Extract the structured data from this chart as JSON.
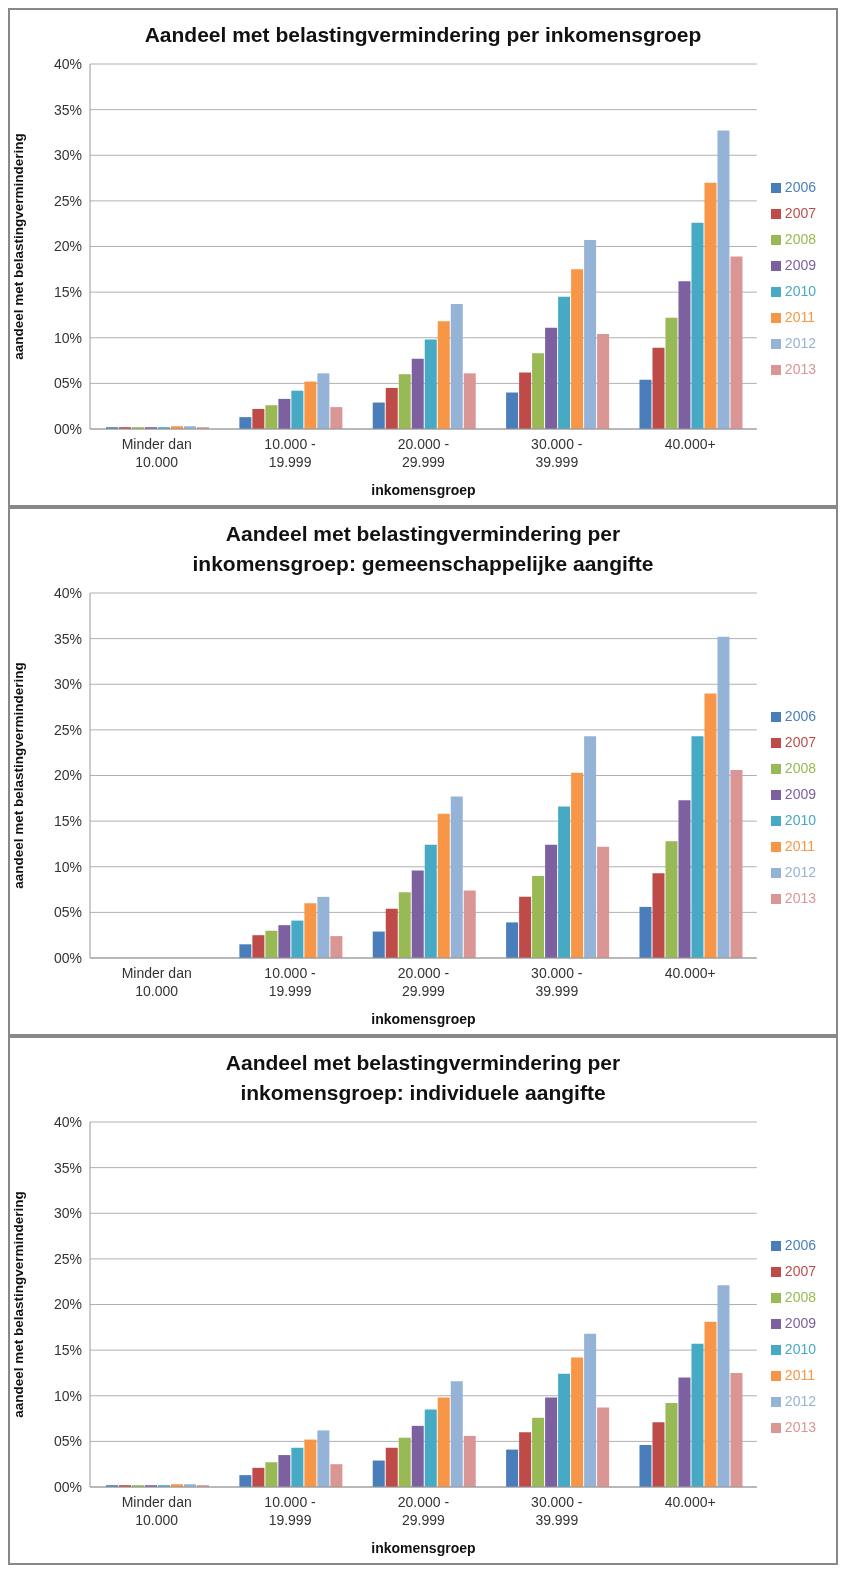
{
  "chart_data": [
    {
      "type": "bar",
      "title": "Aandeel met belastingvermindering per inkomensgroep",
      "xlabel": "inkomensgroep",
      "ylabel": "aandeel met belastingvermindering",
      "categories": [
        "Minder dan 10.000",
        "10.000 - 19.999",
        "20.000 - 29.999",
        "30.000 - 39.999",
        "40.000+"
      ],
      "series": [
        {
          "name": "2006",
          "color": "#4a7ebb",
          "values": [
            0.2,
            1.3,
            2.9,
            4.0,
            5.4
          ]
        },
        {
          "name": "2007",
          "color": "#be4b48",
          "values": [
            0.2,
            2.2,
            4.5,
            6.2,
            8.9
          ]
        },
        {
          "name": "2008",
          "color": "#98b954",
          "values": [
            0.2,
            2.6,
            6.0,
            8.3,
            12.2
          ]
        },
        {
          "name": "2009",
          "color": "#7d60a0",
          "values": [
            0.2,
            3.3,
            7.7,
            11.1,
            16.2
          ]
        },
        {
          "name": "2010",
          "color": "#46aac5",
          "values": [
            0.2,
            4.2,
            9.8,
            14.5,
            22.6
          ]
        },
        {
          "name": "2011",
          "color": "#f79646",
          "values": [
            0.3,
            5.2,
            11.8,
            17.5,
            27.0
          ]
        },
        {
          "name": "2012",
          "color": "#95b3d7",
          "values": [
            0.3,
            6.1,
            13.7,
            20.7,
            32.7
          ]
        },
        {
          "name": "2013",
          "color": "#d99694",
          "values": [
            0.2,
            2.4,
            6.1,
            10.4,
            18.9
          ]
        }
      ],
      "ylim": [
        0,
        40
      ],
      "yticks": [
        {
          "value": 0,
          "label": "00%"
        },
        {
          "value": 5,
          "label": "05%"
        },
        {
          "value": 10,
          "label": "10%"
        },
        {
          "value": 15,
          "label": "15%"
        },
        {
          "value": 20,
          "label": "20%"
        },
        {
          "value": 25,
          "label": "25%"
        },
        {
          "value": 30,
          "label": "30%"
        },
        {
          "value": 35,
          "label": "35%"
        },
        {
          "value": 40,
          "label": "40%"
        }
      ],
      "grid": "y",
      "legend": "right"
    },
    {
      "type": "bar",
      "title": "Aandeel met belastingvermindering per inkomensgroep: gemeenschappelijke aangifte",
      "xlabel": "inkomensgroep",
      "ylabel": "aandeel met belastingvermindering",
      "categories": [
        "Minder dan 10.000",
        "10.000 - 19.999",
        "20.000 - 29.999",
        "30.000 - 39.999",
        "40.000+"
      ],
      "series": [
        {
          "name": "2006",
          "color": "#4a7ebb",
          "values": [
            0,
            1.5,
            2.9,
            3.9,
            5.6
          ]
        },
        {
          "name": "2007",
          "color": "#be4b48",
          "values": [
            0,
            2.5,
            5.4,
            6.7,
            9.3
          ]
        },
        {
          "name": "2008",
          "color": "#98b954",
          "values": [
            0,
            3.0,
            7.2,
            9.0,
            12.8
          ]
        },
        {
          "name": "2009",
          "color": "#7d60a0",
          "values": [
            0,
            3.6,
            9.6,
            12.4,
            17.3
          ]
        },
        {
          "name": "2010",
          "color": "#46aac5",
          "values": [
            0,
            4.1,
            12.4,
            16.6,
            24.3
          ]
        },
        {
          "name": "2011",
          "color": "#f79646",
          "values": [
            0,
            6.0,
            15.8,
            20.3,
            29.0
          ]
        },
        {
          "name": "2012",
          "color": "#95b3d7",
          "values": [
            0,
            6.7,
            17.7,
            24.3,
            35.2
          ]
        },
        {
          "name": "2013",
          "color": "#d99694",
          "values": [
            0,
            2.4,
            7.4,
            12.2,
            20.6
          ]
        }
      ],
      "ylim": [
        0,
        40
      ],
      "yticks": [
        {
          "value": 0,
          "label": "00%"
        },
        {
          "value": 5,
          "label": "05%"
        },
        {
          "value": 10,
          "label": "10%"
        },
        {
          "value": 15,
          "label": "15%"
        },
        {
          "value": 20,
          "label": "20%"
        },
        {
          "value": 25,
          "label": "25%"
        },
        {
          "value": 30,
          "label": "30%"
        },
        {
          "value": 35,
          "label": "35%"
        },
        {
          "value": 40,
          "label": "40%"
        }
      ],
      "grid": "y",
      "legend": "right"
    },
    {
      "type": "bar",
      "title": "Aandeel met belastingvermindering per inkomensgroep: individuele aangifte",
      "xlabel": "inkomensgroep",
      "ylabel": "aandeel met belastingvermindering",
      "categories": [
        "Minder dan 10.000",
        "10.000 - 19.999",
        "20.000 - 29.999",
        "30.000 - 39.999",
        "40.000+"
      ],
      "series": [
        {
          "name": "2006",
          "color": "#4a7ebb",
          "values": [
            0.2,
            1.3,
            2.9,
            4.1,
            4.6
          ]
        },
        {
          "name": "2007",
          "color": "#be4b48",
          "values": [
            0.2,
            2.1,
            4.3,
            6.0,
            7.1
          ]
        },
        {
          "name": "2008",
          "color": "#98b954",
          "values": [
            0.2,
            2.7,
            5.4,
            7.6,
            9.2
          ]
        },
        {
          "name": "2009",
          "color": "#7d60a0",
          "values": [
            0.2,
            3.5,
            6.7,
            9.8,
            12.0
          ]
        },
        {
          "name": "2010",
          "color": "#46aac5",
          "values": [
            0.2,
            4.3,
            8.5,
            12.4,
            15.7
          ]
        },
        {
          "name": "2011",
          "color": "#f79646",
          "values": [
            0.3,
            5.2,
            9.8,
            14.2,
            18.1
          ]
        },
        {
          "name": "2012",
          "color": "#95b3d7",
          "values": [
            0.3,
            6.2,
            11.6,
            16.8,
            22.1
          ]
        },
        {
          "name": "2013",
          "color": "#d99694",
          "values": [
            0.2,
            2.5,
            5.6,
            8.7,
            12.5
          ]
        }
      ],
      "ylim": [
        0,
        40
      ],
      "yticks": [
        {
          "value": 0,
          "label": "00%"
        },
        {
          "value": 5,
          "label": "05%"
        },
        {
          "value": 10,
          "label": "10%"
        },
        {
          "value": 15,
          "label": "15%"
        },
        {
          "value": 20,
          "label": "20%"
        },
        {
          "value": 25,
          "label": "25%"
        },
        {
          "value": 30,
          "label": "30%"
        },
        {
          "value": 35,
          "label": "35%"
        },
        {
          "value": 40,
          "label": "40%"
        }
      ],
      "grid": "y",
      "legend": "right"
    }
  ]
}
